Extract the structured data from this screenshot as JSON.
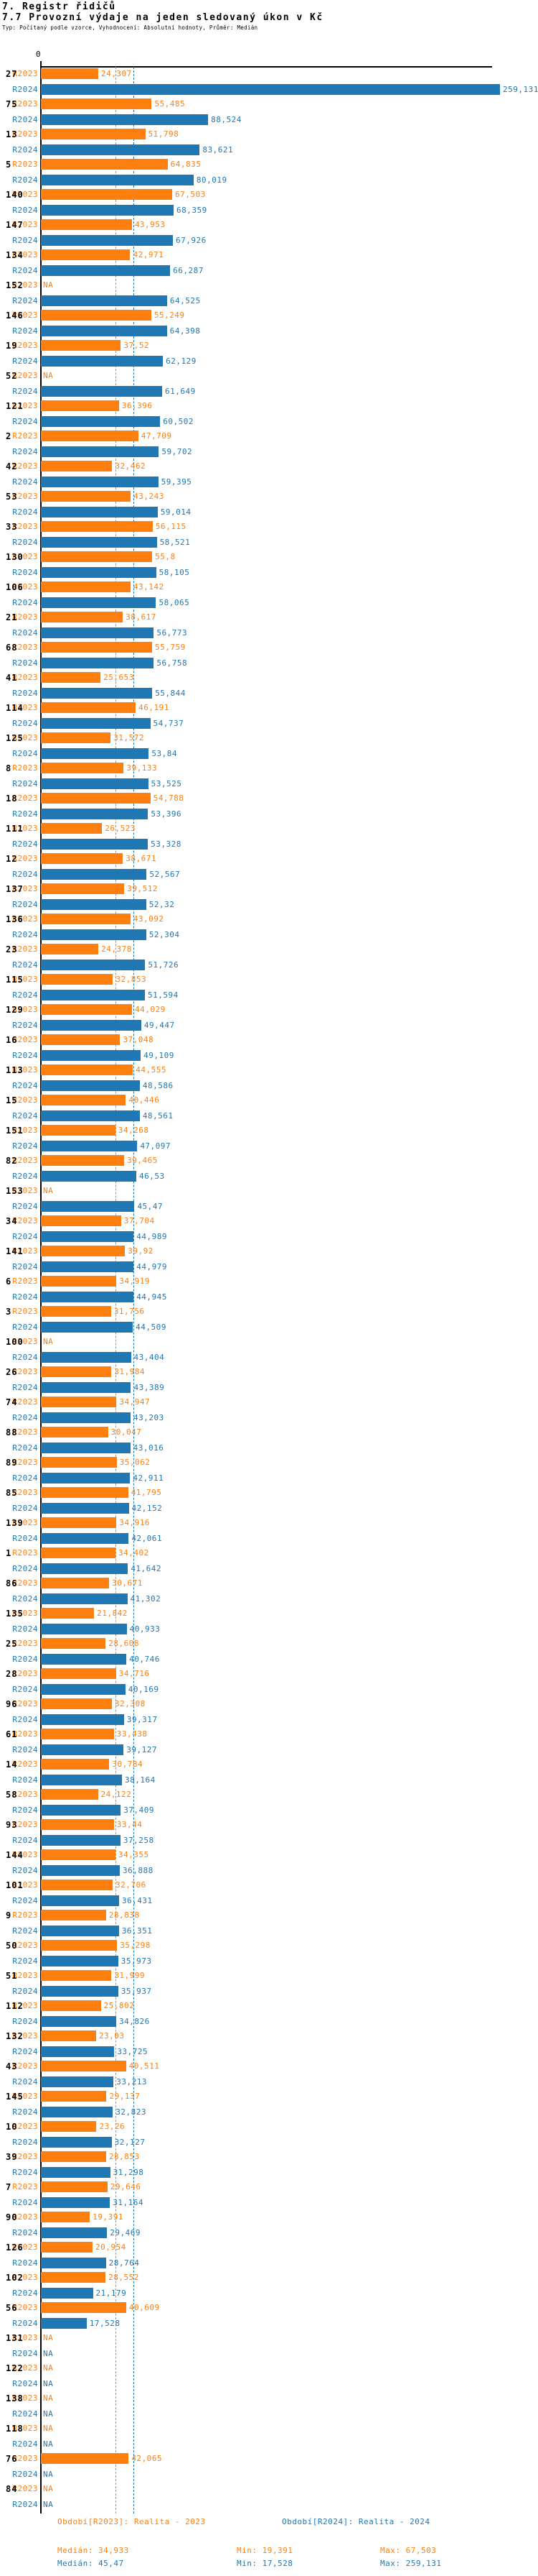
{
  "header": {
    "title": "7. Registr řidičů",
    "subtitle": "7.7 Provozní výdaje na jeden sledovaný úkon v Kč",
    "type_line": "Typ: Počítaný podle vzorce, Vyhodnocení: Absolutní hodnoty, Průměr: Medián"
  },
  "colors": {
    "r2023": "#ff7f0e",
    "r2024": "#1f77b4",
    "axis": "#000000"
  },
  "chart_data": {
    "type": "bar",
    "orientation": "horizontal",
    "unit": "Kč",
    "decimal_separator": ",",
    "zero_label": "0",
    "na_label": "NA",
    "series_labels": {
      "r2023": "R2023",
      "r2024": "R2024"
    },
    "medians": {
      "r2023": 34.933,
      "r2024": 45.47
    },
    "axis_range": [
      0,
      259.131
    ],
    "row_format": [
      "id",
      "r2023",
      "r2024"
    ],
    "rows": [
      [
        "27",
        24.307,
        259.131
      ],
      [
        "75",
        55.485,
        88.524
      ],
      [
        "13",
        51.798,
        83.621
      ],
      [
        "5",
        64.835,
        80.019
      ],
      [
        "140",
        67.503,
        68.359
      ],
      [
        "147",
        43.953,
        67.926
      ],
      [
        "134",
        42.971,
        66.287
      ],
      [
        "152",
        null,
        64.525
      ],
      [
        "146",
        55.249,
        64.398
      ],
      [
        "19",
        37.52,
        62.129
      ],
      [
        "52",
        null,
        61.649
      ],
      [
        "121",
        36.396,
        60.502
      ],
      [
        "2",
        47.709,
        59.702
      ],
      [
        "42",
        32.462,
        59.395
      ],
      [
        "53",
        43.243,
        59.014
      ],
      [
        "33",
        56.115,
        58.521
      ],
      [
        "130",
        55.8,
        58.105
      ],
      [
        "106",
        43.142,
        58.065
      ],
      [
        "21",
        38.617,
        56.773
      ],
      [
        "68",
        55.759,
        56.758
      ],
      [
        "41",
        25.653,
        55.844
      ],
      [
        "114",
        46.191,
        54.737
      ],
      [
        "125",
        31.572,
        53.84
      ],
      [
        "8",
        39.133,
        53.525
      ],
      [
        "18",
        54.788,
        53.396
      ],
      [
        "111",
        26.523,
        53.328
      ],
      [
        "12",
        38.671,
        52.567
      ],
      [
        "137",
        39.512,
        52.32
      ],
      [
        "136",
        43.092,
        52.304
      ],
      [
        "23",
        24.378,
        51.726
      ],
      [
        "115",
        32.853,
        51.594
      ],
      [
        "129",
        44.029,
        49.447
      ],
      [
        "16",
        37.048,
        49.109
      ],
      [
        "113",
        44.555,
        48.586
      ],
      [
        "15",
        40.446,
        48.561
      ],
      [
        "151",
        34.268,
        47.097
      ],
      [
        "82",
        39.465,
        46.53
      ],
      [
        "153",
        null,
        45.47
      ],
      [
        "34",
        37.704,
        44.989
      ],
      [
        "141",
        39.92,
        44.979
      ],
      [
        "6",
        34.919,
        44.945
      ],
      [
        "3",
        31.756,
        44.509
      ],
      [
        "100",
        null,
        43.404
      ],
      [
        "26",
        31.984,
        43.389
      ],
      [
        "74",
        34.947,
        43.203
      ],
      [
        "88",
        30.047,
        43.016
      ],
      [
        "89",
        35.062,
        42.911
      ],
      [
        "85",
        41.795,
        42.152
      ],
      [
        "139",
        34.916,
        42.061
      ],
      [
        "1",
        34.402,
        41.642
      ],
      [
        "86",
        30.671,
        41.302
      ],
      [
        "135",
        21.842,
        40.933
      ],
      [
        "25",
        28.608,
        40.746
      ],
      [
        "28",
        34.716,
        40.169
      ],
      [
        "96",
        32.308,
        39.317
      ],
      [
        "61",
        33.438,
        39.127
      ],
      [
        "14",
        30.784,
        38.164
      ],
      [
        "58",
        24.122,
        37.409
      ],
      [
        "93",
        33.44,
        37.258
      ],
      [
        "144",
        34.355,
        36.888
      ],
      [
        "101",
        32.706,
        36.431
      ],
      [
        "9",
        28.838,
        36.351
      ],
      [
        "50",
        35.298,
        35.973
      ],
      [
        "51",
        31.999,
        35.937
      ],
      [
        "112",
        25.802,
        34.826
      ],
      [
        "132",
        23.03,
        33.725
      ],
      [
        "43",
        40.511,
        33.213
      ],
      [
        "145",
        29.137,
        32.823
      ],
      [
        "10",
        23.26,
        32.127
      ],
      [
        "39",
        28.853,
        31.298
      ],
      [
        "7",
        29.646,
        31.164
      ],
      [
        "90",
        19.391,
        29.469
      ],
      [
        "126",
        20.954,
        28.764
      ],
      [
        "102",
        28.552,
        21.179
      ],
      [
        "56",
        40.609,
        17.528
      ],
      [
        "131",
        null,
        null
      ],
      [
        "122",
        null,
        null
      ],
      [
        "138",
        null,
        null
      ],
      [
        "118",
        null,
        null
      ],
      [
        "76",
        42.065,
        null
      ],
      [
        "84",
        null,
        null
      ]
    ]
  },
  "footer": {
    "legend_2023": "Období[R2023]: Realita - 2023",
    "legend_2024": "Období[R2024]: Realita - 2024",
    "median_2023": "Medián: 34,933",
    "min_2023": "Min: 19,391",
    "max_2023": "Max: 67,503",
    "median_2024": "Medián: 45,47",
    "min_2024": "Min: 17,528",
    "max_2024": "Max: 259,131"
  }
}
